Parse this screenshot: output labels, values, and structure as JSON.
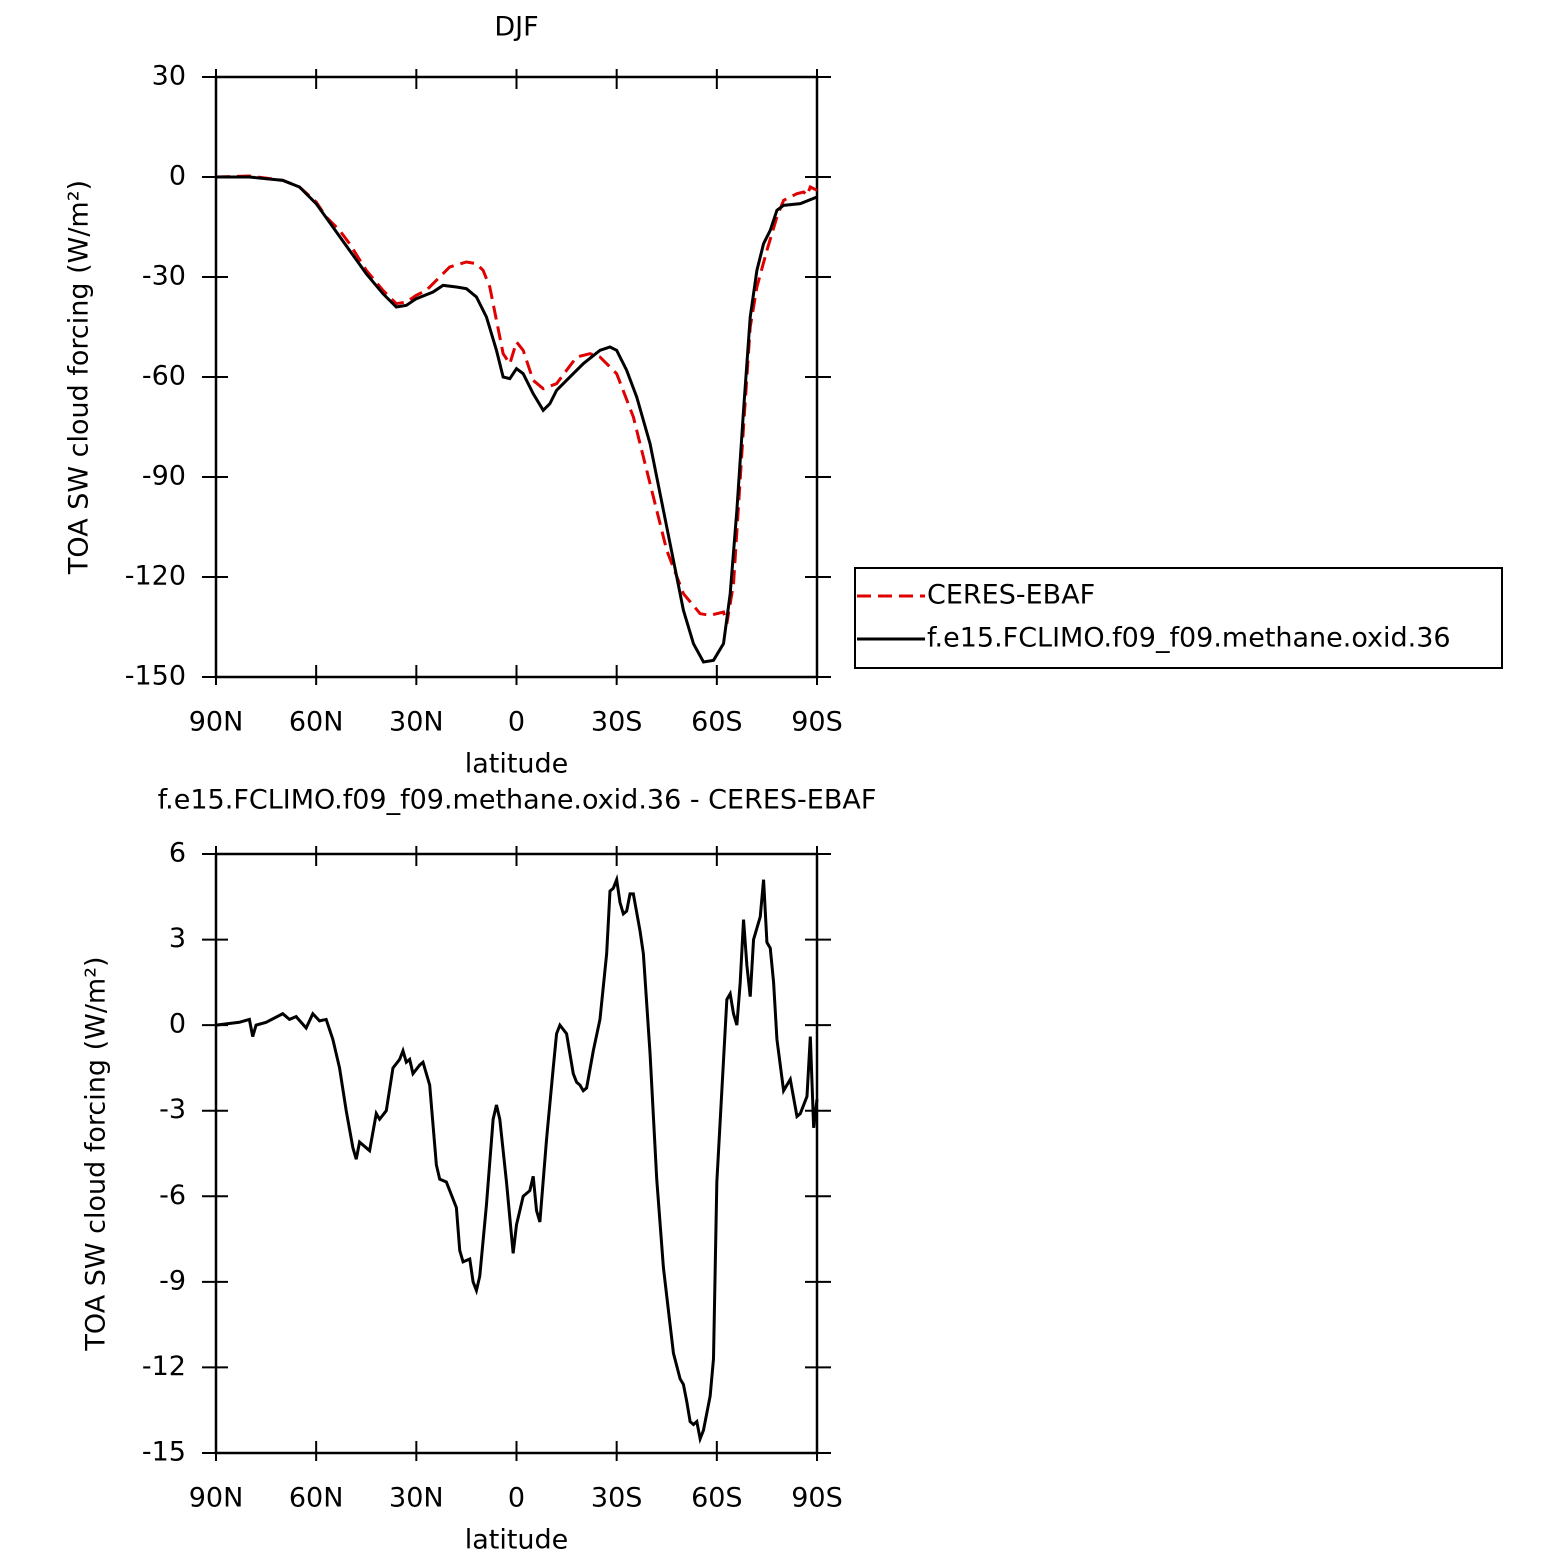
{
  "chart_data": [
    {
      "type": "line",
      "title": "DJF",
      "xlabel": "latitude",
      "ylabel": "TOA SW cloud forcing (W/m²)",
      "xlim": [
        90,
        -90
      ],
      "xticks": [
        {
          "value": 90,
          "label": "90N"
        },
        {
          "value": 60,
          "label": "60N"
        },
        {
          "value": 30,
          "label": "30N"
        },
        0,
        {
          "value": -30,
          "label": "30S"
        },
        {
          "value": -60,
          "label": "60S"
        },
        {
          "value": -90,
          "label": "90S"
        }
      ],
      "ylim": [
        -150,
        30
      ],
      "yticks": [
        -150,
        -120,
        -90,
        -60,
        -30,
        0,
        30
      ],
      "legend": "right",
      "series": [
        {
          "name": "CERES-EBAF",
          "color": "#e00000",
          "linestyle": "dashed",
          "x": [
            90,
            80,
            70,
            65,
            60,
            57,
            53,
            50,
            45,
            40,
            36,
            33,
            30,
            27,
            23,
            20,
            15,
            12,
            10,
            8,
            6,
            4,
            2,
            0,
            -2,
            -5,
            -8,
            -12,
            -15,
            -18,
            -22,
            -25,
            -30,
            -35,
            -40,
            -45,
            -50,
            -55,
            -58,
            -62,
            -63,
            -65,
            -68,
            -70,
            -72,
            -75,
            -78,
            -80,
            -84,
            -86,
            -87,
            -88,
            -90
          ],
          "values": [
            0,
            0.3,
            -1,
            -3,
            -7.5,
            -12,
            -16,
            -20,
            -28,
            -34,
            -38,
            -37.5,
            -35.5,
            -34,
            -30,
            -27,
            -25.5,
            -26,
            -28,
            -33,
            -43,
            -53,
            -56,
            -49.5,
            -52,
            -61,
            -63.5,
            -62,
            -58,
            -54,
            -53,
            -54,
            -59,
            -72,
            -92,
            -112,
            -125,
            -131,
            -131.5,
            -130.5,
            -134,
            -122,
            -75,
            -45,
            -33,
            -22,
            -12,
            -7,
            -5,
            -4.5,
            -5.5,
            -3,
            -4
          ]
        },
        {
          "name": "f.e15.FCLIMO.f09_f09.methane.oxid.36",
          "color": "#000000",
          "linestyle": "solid",
          "x": [
            90,
            80,
            70,
            65,
            60,
            55,
            50,
            45,
            40,
            36,
            33,
            30,
            25,
            22,
            18,
            15,
            12,
            9,
            6,
            4,
            2,
            0,
            -2,
            -5,
            -8,
            -10,
            -12,
            -15,
            -20,
            -25,
            -28,
            -30,
            -33,
            -36,
            -40,
            -45,
            -50,
            -53,
            -56,
            -59,
            -62,
            -64,
            -66,
            -68,
            -70,
            -72,
            -74,
            -76,
            -78,
            -80,
            -85,
            -90
          ],
          "values": [
            0,
            0,
            -1,
            -3,
            -8,
            -15,
            -22,
            -29,
            -35,
            -39,
            -38.5,
            -36.5,
            -34.5,
            -32.5,
            -33,
            -33.5,
            -36,
            -42,
            -52,
            -60,
            -60.5,
            -57.5,
            -59,
            -65,
            -70,
            -68,
            -64,
            -61,
            -56,
            -52,
            -51,
            -52,
            -58,
            -66,
            -80,
            -105,
            -130,
            -140,
            -145.5,
            -145,
            -140,
            -125,
            -100,
            -70,
            -42,
            -28,
            -20,
            -16,
            -10,
            -8.5,
            -8,
            -6
          ]
        }
      ]
    },
    {
      "type": "line",
      "title": "f.e15.FCLIMO.f09_f09.methane.oxid.36 - CERES-EBAF",
      "xlabel": "latitude",
      "ylabel": "TOA SW cloud forcing (W/m²)",
      "xlim": [
        90,
        -90
      ],
      "xticks": [
        {
          "value": 90,
          "label": "90N"
        },
        {
          "value": 60,
          "label": "60N"
        },
        {
          "value": 30,
          "label": "30N"
        },
        0,
        {
          "value": -30,
          "label": "30S"
        },
        {
          "value": -60,
          "label": "60S"
        },
        {
          "value": -90,
          "label": "90S"
        }
      ],
      "ylim": [
        -15,
        6
      ],
      "yticks": [
        -15,
        -12,
        -9,
        -6,
        -3,
        0,
        3,
        6
      ],
      "series": [
        {
          "color": "#000000",
          "linestyle": "solid",
          "x": [
            90,
            83,
            80,
            79,
            78,
            75,
            70,
            68,
            66,
            63,
            61,
            59,
            57,
            55,
            53,
            51,
            49,
            48,
            47,
            45,
            44,
            42,
            41,
            39,
            37,
            35,
            34,
            33,
            32,
            31,
            29,
            28,
            26,
            24,
            23,
            21,
            19,
            18,
            17,
            16,
            14,
            13,
            12,
            11,
            9,
            7,
            6,
            5,
            3,
            1,
            0,
            -2,
            -4,
            -5,
            -6,
            -7,
            -9,
            -11,
            -12,
            -13,
            -15,
            -17,
            -18,
            -19,
            -20,
            -21,
            -23,
            -25,
            -27,
            -28,
            -29,
            -30,
            -31,
            -32,
            -33,
            -34,
            -35,
            -37,
            -38,
            -40,
            -42,
            -44,
            -46,
            -47,
            -49,
            -50,
            -51,
            -52,
            -53,
            -54,
            -55,
            -56,
            -58,
            -59,
            -60,
            -63,
            -64,
            -65,
            -66,
            -67,
            -68,
            -69,
            -70,
            -71,
            -73,
            -74,
            -75,
            -76,
            -77,
            -78,
            -80,
            -81,
            -82,
            -84,
            -85,
            -87,
            -88,
            -89,
            -90
          ],
          "values": [
            0,
            0.1,
            0.2,
            -0.4,
            0,
            0.1,
            0.4,
            0.2,
            0.3,
            -0.1,
            0.4,
            0.15,
            0.2,
            -0.5,
            -1.5,
            -3,
            -4.3,
            -4.7,
            -4.1,
            -4.3,
            -4.4,
            -3.1,
            -3.3,
            -3,
            -1.5,
            -1.2,
            -0.9,
            -1.3,
            -1.2,
            -1.7,
            -1.4,
            -1.3,
            -2.1,
            -4.9,
            -5.4,
            -5.5,
            -6.1,
            -6.4,
            -7.9,
            -8.3,
            -8.2,
            -9,
            -9.3,
            -8.8,
            -6.3,
            -3.3,
            -2.8,
            -3.3,
            -5.5,
            -8,
            -7,
            -6,
            -5.8,
            -5.3,
            -6.5,
            -6.9,
            -4,
            -1.5,
            -0.3,
            0,
            -0.3,
            -1.7,
            -2,
            -2.1,
            -2.3,
            -2.2,
            -0.9,
            0.2,
            2.5,
            4.7,
            4.8,
            5.1,
            4.3,
            3.9,
            4,
            4.6,
            4.6,
            3.3,
            2.5,
            -1,
            -5.4,
            -8.5,
            -10.5,
            -11.5,
            -12.4,
            -12.6,
            -13.2,
            -13.9,
            -14,
            -13.9,
            -14.5,
            -14.2,
            -13,
            -11.7,
            -5.5,
            0.9,
            1.1,
            0.4,
            0,
            1.5,
            3.7,
            2.1,
            1,
            3,
            3.8,
            5.1,
            2.9,
            2.7,
            1.5,
            -0.5,
            -2.3,
            -2.1,
            -1.9,
            -3.2,
            -3.1,
            -2.5,
            -0.4,
            -3.6,
            -2.6
          ]
        }
      ]
    }
  ]
}
